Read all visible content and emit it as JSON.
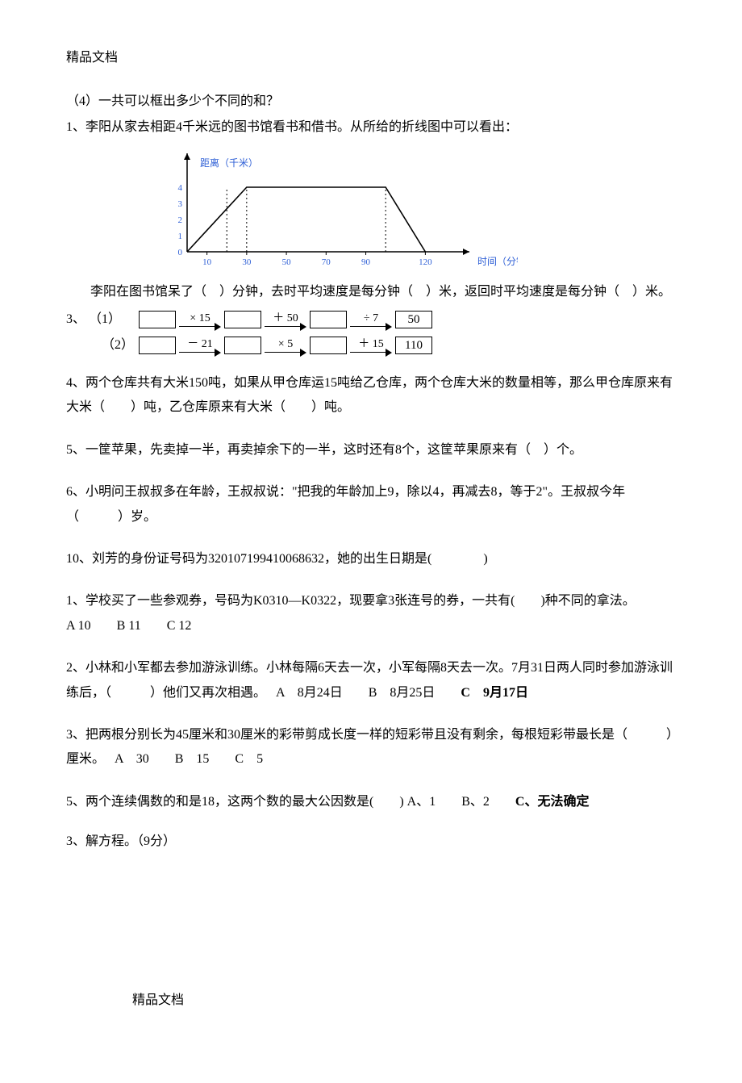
{
  "header": "精品文档",
  "footer": "精品文档",
  "q4": "（4）一共可以框出多少个不同的和？",
  "q1a": "1、李阳从家去相距4千米远的图书馆看书和借书。从所给的折线图中可以看出：",
  "chart": {
    "xlabel": "时间（分钟）",
    "ylabel": "距离（千米）",
    "xmin": 0,
    "xmax": 130,
    "ymin": 0,
    "ymax": 5,
    "xticks": [
      10,
      30,
      50,
      70,
      90,
      120
    ],
    "yticks": [
      0,
      1,
      2,
      3,
      4
    ],
    "polyline": [
      [
        0,
        0
      ],
      [
        30,
        4
      ],
      [
        100,
        4
      ],
      [
        120,
        0
      ]
    ],
    "dashed_x": [
      20,
      30,
      100
    ],
    "label_color": "#2e5fd6",
    "axis_color": "#000000",
    "line_color": "#000000",
    "tick_fontsize": 11,
    "label_fontsize": 12
  },
  "q1b": "李阳在图书馆呆了（　）分钟，去时平均速度是每分钟（　）米，返回时平均速度是每分钟（　）米。",
  "q3": {
    "label": "3、",
    "row1_label": "（1）",
    "row2_label": "（2）",
    "row1_ops": [
      "× 15",
      "＋ 50",
      "÷ 7"
    ],
    "row1_result": "50",
    "row2_ops": [
      "－ 21",
      "× 5",
      "＋ 15"
    ],
    "row2_result": "110"
  },
  "q4b": "4、两个仓库共有大米150吨，如果从甲仓库运15吨给乙仓库，两个仓库大米的数量相等，那么甲仓库原来有大米（　　）吨，乙仓库原来有大米（　　）吨。",
  "q5": "5、一筐苹果，先卖掉一半，再卖掉余下的一半，这时还有8个，这筐苹果原来有（　）个。",
  "q6": "6、小明问王叔叔多在年龄，王叔叔说：\"把我的年龄加上9，除以4，再减去8，等于2\"。王叔叔今年（　　　）岁。",
  "q10": "10、刘芳的身份证号码为320107199410068632，她的出生日期是(　　　　)",
  "mc1": {
    "stem": "1、学校买了一些参观券，号码为K0310—K0322，现要拿3张连号的券，一共有(　　)种不同的拿法。",
    "A": "A  10",
    "B": "B  11",
    "C": "C  12"
  },
  "mc2": {
    "stem": "2、小林和小军都去参加游泳训练。小林每隔6天去一次，小军每隔8天去一次。7月31日两人同时参加游泳训练后，（　　　）他们又再次相遇。",
    "A": "A　8月24日",
    "B": "B　8月25日",
    "C": "C　9月17日"
  },
  "mc3": {
    "stem": "3、把两根分别长为45厘米和30厘米的彩带剪成长度一样的短彩带且没有剩余，每根短彩带最长是（　　　）厘米。",
    "A": "A　30",
    "B": "B　15",
    "C": "C　5"
  },
  "mc5": {
    "stem": "5、两个连续偶数的和是18，这两个数的最大公因数是(　　)",
    "A": "A、1",
    "B": "B、2",
    "C": "C、无法确定"
  },
  "q3eq": "3、解方程。（9分）"
}
